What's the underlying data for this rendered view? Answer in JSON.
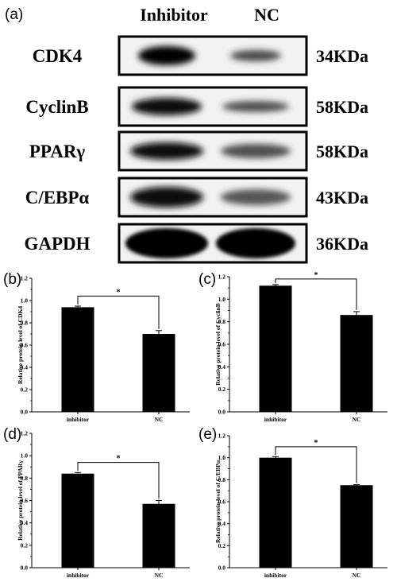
{
  "western_blot": {
    "panel_label": "(a)",
    "columns": [
      "Inhibitor",
      "NC"
    ],
    "rows": [
      {
        "protein": "CDK4",
        "mw": "34KDa"
      },
      {
        "protein": "CyclinB",
        "mw": "58KDa"
      },
      {
        "protein": "PPARγ",
        "mw": "58KDa"
      },
      {
        "protein": "C/EBPα",
        "mw": "43KDa"
      },
      {
        "protein": "GAPDH",
        "mw": "36KDa"
      }
    ]
  },
  "chart_data": [
    {
      "panel_label": "(b)",
      "type": "bar",
      "categories": [
        "inhibitor",
        "NC"
      ],
      "values": [
        0.94,
        0.7
      ],
      "errors": [
        0.01,
        0.03
      ],
      "ylabel": "Relative protein level of CDK4",
      "ylim": [
        0,
        1.2
      ],
      "yticks": [
        "0.0",
        "0.2",
        "0.4",
        "0.6",
        "0.8",
        "1.0",
        "1.2"
      ],
      "significance": "*"
    },
    {
      "panel_label": "(c)",
      "type": "bar",
      "categories": [
        "inhibitor",
        "NC"
      ],
      "values": [
        1.12,
        0.86
      ],
      "errors": [
        0.01,
        0.03
      ],
      "ylabel": "Relative protein level of CyclinB",
      "ylim": [
        0,
        1.2
      ],
      "yticks": [
        "0.0",
        "0.2",
        "0.4",
        "0.6",
        "0.8",
        "1.0",
        "1.2"
      ],
      "significance": "*"
    },
    {
      "panel_label": "(d)",
      "type": "bar",
      "categories": [
        "inhibitor",
        "NC"
      ],
      "values": [
        0.84,
        0.57
      ],
      "errors": [
        0.01,
        0.03
      ],
      "ylabel": "Relative protein level of PPARγ",
      "ylim": [
        0,
        1.2
      ],
      "yticks": [
        "0.0",
        "0.2",
        "0.4",
        "0.6",
        "0.8",
        "1.0",
        "1.2"
      ],
      "significance": "*"
    },
    {
      "panel_label": "(e)",
      "type": "bar",
      "categories": [
        "inhibitor",
        "NC"
      ],
      "values": [
        1.0,
        0.75
      ],
      "errors": [
        0.01,
        0.005
      ],
      "ylabel": "Relative protein level of C/EBPα",
      "ylim": [
        0,
        1.2
      ],
      "yticks": [
        "0.0",
        "0.2",
        "0.4",
        "0.6",
        "0.8",
        "1.0",
        "1.2"
      ],
      "significance": "*"
    }
  ]
}
